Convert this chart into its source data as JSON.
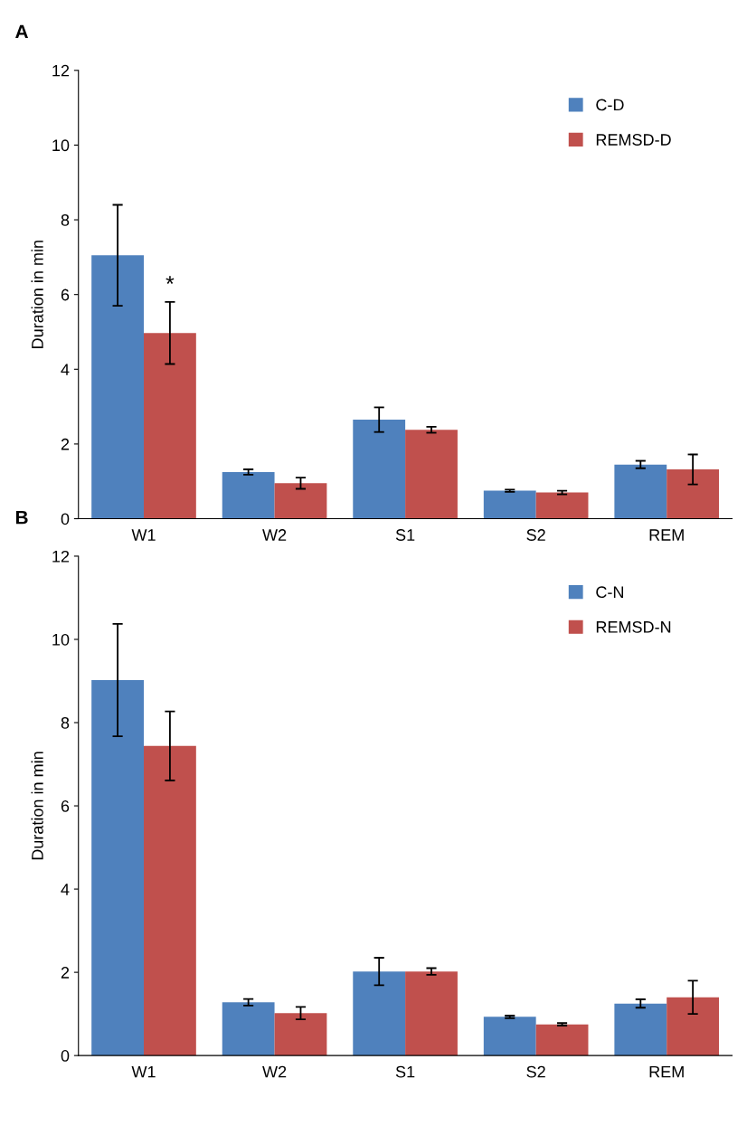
{
  "chart_data": [
    {
      "type": "bar",
      "ylabel": "Duration in min",
      "categories": [
        "W1",
        "W2",
        "S1",
        "S2",
        "REM"
      ],
      "ylim": [
        0,
        12
      ],
      "yticks": [
        0,
        2,
        4,
        6,
        8,
        10,
        12
      ],
      "grid": false,
      "legend": "top right",
      "annotations": [
        "A",
        {
          "text": "*",
          "x": "W1",
          "y": 5.82
        }
      ],
      "series": [
        {
          "name": "C-D",
          "color": "#4f81bd",
          "values": [
            7.05,
            1.25,
            2.65,
            0.75,
            1.45
          ],
          "errors": [
            1.35,
            0.07,
            0.33,
            0.03,
            0.1
          ]
        },
        {
          "name": "REMSD-D",
          "color": "#c0504d",
          "values": [
            4.97,
            0.95,
            2.38,
            0.7,
            1.32
          ],
          "errors": [
            0.83,
            0.15,
            0.08,
            0.05,
            0.4
          ]
        }
      ]
    },
    {
      "type": "bar",
      "ylabel": "Duration in min",
      "categories": [
        "W1",
        "W2",
        "S1",
        "S2",
        "REM"
      ],
      "ylim": [
        0,
        12
      ],
      "yticks": [
        0,
        2,
        4,
        6,
        8,
        10,
        12
      ],
      "grid": false,
      "legend": "top right",
      "annotations": [
        "B"
      ],
      "series": [
        {
          "name": "C-N",
          "color": "#4f81bd",
          "values": [
            9.02,
            1.28,
            2.02,
            0.93,
            1.25
          ],
          "errors": [
            1.35,
            0.08,
            0.33,
            0.03,
            0.1
          ]
        },
        {
          "name": "REMSD-N",
          "color": "#c0504d",
          "values": [
            7.44,
            1.02,
            2.02,
            0.75,
            1.4
          ],
          "errors": [
            0.83,
            0.15,
            0.08,
            0.03,
            0.4
          ]
        }
      ]
    }
  ]
}
